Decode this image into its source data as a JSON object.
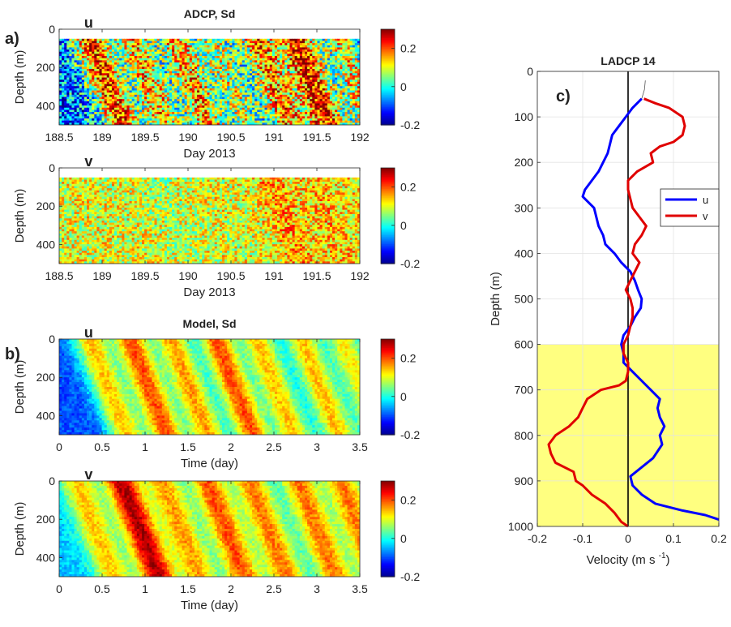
{
  "figure": {
    "panel_labels": [
      "a)",
      "b)",
      "c)"
    ],
    "colormap": [
      "#00008f",
      "#0000ff",
      "#0080ff",
      "#00ffff",
      "#80ff80",
      "#ffff00",
      "#ff8000",
      "#ff0000",
      "#800000"
    ]
  },
  "chart_data": [
    {
      "id": "adcp_u",
      "type": "heatmap",
      "title": "ADCP, Sd",
      "inset_label": "u",
      "xlabel": "Day 2013",
      "ylabel": "Depth (m)",
      "xlim": [
        188.5,
        192
      ],
      "ylim": [
        0,
        500
      ],
      "xticks": [
        188.5,
        189,
        189.5,
        190,
        190.5,
        191,
        191.5,
        192
      ],
      "xtick_labels": [
        "188.5",
        "189",
        "189.5",
        "190",
        "190.5",
        "191",
        "191.5",
        "192"
      ],
      "yticks": [
        0,
        200,
        400
      ],
      "ytick_labels": [
        "0",
        "200",
        "400"
      ],
      "data_depth_range": [
        50,
        500
      ],
      "clim": [
        -0.2,
        0.3
      ],
      "colorbar_ticks": [
        0.2,
        0,
        -0.2
      ],
      "colorbar_tick_labels": [
        "0.2",
        "0",
        "-0.2"
      ],
      "band_centers": [
        188.8,
        189.3,
        189.8,
        190.25,
        190.75,
        191.2,
        191.7
      ],
      "band_values": [
        0.22,
        0.15,
        0.16,
        0.08,
        0.18,
        0.24,
        0.12
      ],
      "background_value": -0.08,
      "noise": 0.14
    },
    {
      "id": "adcp_v",
      "type": "heatmap",
      "title": "",
      "inset_label": "v",
      "xlabel": "Day 2013",
      "ylabel": "Depth (m)",
      "xlim": [
        188.5,
        192
      ],
      "ylim": [
        0,
        500
      ],
      "xticks": [
        188.5,
        189,
        189.5,
        190,
        190.5,
        191,
        191.5,
        192
      ],
      "xtick_labels": [
        "188.5",
        "189",
        "189.5",
        "190",
        "190.5",
        "191",
        "191.5",
        "192"
      ],
      "yticks": [
        0,
        200,
        400
      ],
      "ytick_labels": [
        "0",
        "200",
        "400"
      ],
      "data_depth_range": [
        50,
        500
      ],
      "clim": [
        -0.2,
        0.3
      ],
      "colorbar_ticks": [
        0.2,
        0,
        -0.2
      ],
      "colorbar_tick_labels": [
        "0.2",
        "0",
        "-0.2"
      ],
      "band_centers": [
        189.0,
        189.6,
        190.4,
        190.9,
        191.4,
        191.9
      ],
      "band_values": [
        0.1,
        0.08,
        0.1,
        0.16,
        0.14,
        0.12
      ],
      "background_value": 0.1,
      "noise": 0.09
    },
    {
      "id": "model_u",
      "type": "heatmap",
      "title": "Model, Sd",
      "inset_label": "u",
      "xlabel": "Time (day)",
      "ylabel": "Depth (m)",
      "xlim": [
        0,
        3.5
      ],
      "ylim": [
        0,
        500
      ],
      "xticks": [
        0,
        0.5,
        1,
        1.5,
        2,
        2.5,
        3,
        3.5
      ],
      "xtick_labels": [
        "0",
        "0.5",
        "1",
        "1.5",
        "2",
        "2.5",
        "3",
        "3.5"
      ],
      "yticks": [
        0,
        200,
        400
      ],
      "ytick_labels": [
        "0",
        "200",
        "400"
      ],
      "data_depth_range": [
        0,
        500
      ],
      "clim": [
        -0.2,
        0.3
      ],
      "colorbar_ticks": [
        0.2,
        0,
        -0.2
      ],
      "colorbar_tick_labels": [
        "0.2",
        "0",
        "-0.2"
      ],
      "band_centers": [
        0.35,
        0.82,
        1.3,
        1.82,
        2.3,
        2.82,
        3.3
      ],
      "band_values": [
        0.14,
        0.2,
        0.16,
        0.2,
        0.14,
        0.14,
        0.12
      ],
      "background_value": -0.1,
      "noise": 0.03
    },
    {
      "id": "model_v",
      "type": "heatmap",
      "title": "",
      "inset_label": "v",
      "xlabel": "Time (day)",
      "ylabel": "Depth (m)",
      "xlim": [
        0,
        3.5
      ],
      "ylim": [
        0,
        500
      ],
      "xticks": [
        0,
        0.5,
        1,
        1.5,
        2,
        2.5,
        3,
        3.5
      ],
      "xtick_labels": [
        "0",
        "0.5",
        "1",
        "1.5",
        "2",
        "2.5",
        "3",
        "3.5"
      ],
      "yticks": [
        0,
        200,
        400
      ],
      "ytick_labels": [
        "0",
        "200",
        "400"
      ],
      "data_depth_range": [
        0,
        500
      ],
      "clim": [
        -0.2,
        0.3
      ],
      "colorbar_ticks": [
        0.2,
        0,
        -0.2
      ],
      "colorbar_tick_labels": [
        "0.2",
        "0",
        "-0.2"
      ],
      "band_centers": [
        0.2,
        0.72,
        1.2,
        1.72,
        2.22,
        2.78,
        3.28
      ],
      "band_values": [
        0.14,
        0.28,
        0.16,
        0.2,
        0.18,
        0.18,
        0.18
      ],
      "background_value": -0.04,
      "noise": 0.03
    },
    {
      "id": "ladcp_profile",
      "type": "line",
      "title": "LADCP 14",
      "xlabel": "Velocity (m s",
      "xlabel_superscript": "-1",
      "xlabel_suffix": ")",
      "ylabel": "Depth (m)",
      "xlim": [
        -0.2,
        0.2
      ],
      "ylim": [
        1000,
        0
      ],
      "xticks": [
        -0.2,
        -0.1,
        0,
        0.1,
        0.2
      ],
      "xtick_labels": [
        "-0.2",
        "-0.1",
        "0",
        "0.1",
        "0.2"
      ],
      "yticks": [
        0,
        100,
        200,
        300,
        400,
        500,
        600,
        700,
        800,
        900,
        1000
      ],
      "ytick_labels": [
        "0",
        "100",
        "200",
        "300",
        "400",
        "500",
        "600",
        "700",
        "800",
        "900",
        "1000"
      ],
      "grid": true,
      "legend": "right",
      "shaded_depth_range": [
        600,
        1000
      ],
      "shade_color": "#ffff80",
      "vertical_line_x": 0,
      "surface_segment": {
        "x": [
          0.038,
          0.036,
          0.03
        ],
        "y": [
          20,
          40,
          60
        ]
      },
      "series": [
        {
          "name": "u",
          "color": "#0000ff",
          "points": [
            [
              0.03,
              60
            ],
            [
              0.02,
              70
            ],
            [
              0.01,
              80
            ],
            [
              -0.005,
              100
            ],
            [
              -0.02,
              120
            ],
            [
              -0.035,
              140
            ],
            [
              -0.04,
              160
            ],
            [
              -0.045,
              180
            ],
            [
              -0.055,
              200
            ],
            [
              -0.065,
              220
            ],
            [
              -0.08,
              240
            ],
            [
              -0.095,
              260
            ],
            [
              -0.1,
              275
            ],
            [
              -0.09,
              285
            ],
            [
              -0.075,
              300
            ],
            [
              -0.07,
              320
            ],
            [
              -0.065,
              340
            ],
            [
              -0.055,
              360
            ],
            [
              -0.05,
              380
            ],
            [
              -0.03,
              400
            ],
            [
              -0.015,
              420
            ],
            [
              0.005,
              440
            ],
            [
              0.015,
              460
            ],
            [
              0.022,
              480
            ],
            [
              0.03,
              500
            ],
            [
              0.028,
              520
            ],
            [
              0.015,
              540
            ],
            [
              0.005,
              560
            ],
            [
              -0.01,
              580
            ],
            [
              -0.015,
              600
            ],
            [
              -0.01,
              620
            ],
            [
              -0.01,
              640
            ],
            [
              0.01,
              660
            ],
            [
              0.03,
              680
            ],
            [
              0.05,
              700
            ],
            [
              0.07,
              720
            ],
            [
              0.065,
              740
            ],
            [
              0.07,
              760
            ],
            [
              0.08,
              780
            ],
            [
              0.07,
              800
            ],
            [
              0.075,
              820
            ],
            [
              0.055,
              850
            ],
            [
              0.03,
              870
            ],
            [
              0.005,
              890
            ],
            [
              0.01,
              910
            ],
            [
              0.03,
              930
            ],
            [
              0.06,
              950
            ],
            [
              0.12,
              965
            ],
            [
              0.17,
              975
            ],
            [
              0.2,
              985
            ]
          ]
        },
        {
          "name": "v",
          "color": "#e00000",
          "points": [
            [
              0.035,
              60
            ],
            [
              0.06,
              70
            ],
            [
              0.09,
              80
            ],
            [
              0.12,
              100
            ],
            [
              0.125,
              120
            ],
            [
              0.12,
              140
            ],
            [
              0.1,
              155
            ],
            [
              0.07,
              165
            ],
            [
              0.05,
              180
            ],
            [
              0.055,
              200
            ],
            [
              0.02,
              220
            ],
            [
              0.0,
              240
            ],
            [
              0.0,
              260
            ],
            [
              0.005,
              280
            ],
            [
              0.01,
              300
            ],
            [
              0.025,
              320
            ],
            [
              0.04,
              340
            ],
            [
              0.03,
              360
            ],
            [
              0.015,
              380
            ],
            [
              0.01,
              400
            ],
            [
              0.025,
              420
            ],
            [
              0.015,
              440
            ],
            [
              0.005,
              460
            ],
            [
              -0.005,
              480
            ],
            [
              0.005,
              500
            ],
            [
              0.01,
              520
            ],
            [
              0.01,
              540
            ],
            [
              0.005,
              560
            ],
            [
              0.0,
              580
            ],
            [
              -0.01,
              600
            ],
            [
              -0.01,
              620
            ],
            [
              0.0,
              640
            ],
            [
              0.0,
              660
            ],
            [
              -0.005,
              680
            ],
            [
              -0.02,
              690
            ],
            [
              -0.06,
              700
            ],
            [
              -0.09,
              720
            ],
            [
              -0.1,
              740
            ],
            [
              -0.11,
              760
            ],
            [
              -0.13,
              780
            ],
            [
              -0.16,
              800
            ],
            [
              -0.175,
              820
            ],
            [
              -0.17,
              840
            ],
            [
              -0.16,
              860
            ],
            [
              -0.12,
              880
            ],
            [
              -0.115,
              900
            ],
            [
              -0.1,
              910
            ],
            [
              -0.08,
              930
            ],
            [
              -0.05,
              950
            ],
            [
              -0.03,
              970
            ],
            [
              -0.015,
              990
            ],
            [
              0.0,
              1000
            ]
          ]
        }
      ]
    }
  ]
}
